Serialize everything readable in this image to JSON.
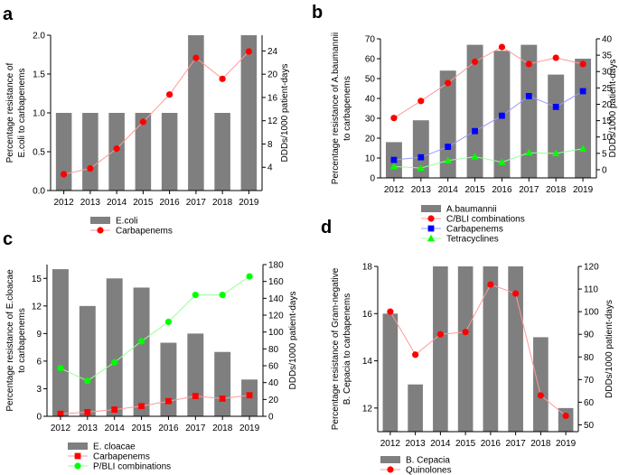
{
  "colors": {
    "bar": "#7f7f7f",
    "red": "#ff0000",
    "blue": "#0000ff",
    "green": "#00ff00",
    "light_red": "#ff9999",
    "light_blue": "#9999ff",
    "light_green": "#99ff99"
  },
  "chart_data": [
    {
      "panel": "a",
      "type": "bar+line",
      "categories": [
        "2012",
        "2013",
        "2014",
        "2015",
        "2016",
        "2017",
        "2018",
        "2019"
      ],
      "ylabel": "Percentage resistance of E.coli to carbapenems",
      "ylabel_lines": [
        "Percentage resistance of",
        "E.coli to carbapenems"
      ],
      "y2label": "DDDs/1000 patient-days",
      "ylim": [
        0,
        2.0
      ],
      "yticks": [
        "0.0",
        "0.5",
        "1.0",
        "1.5",
        "2.0"
      ],
      "y2lim": [
        0,
        26.7
      ],
      "y2ticks": [
        "4",
        "8",
        "12",
        "16",
        "20",
        "24"
      ],
      "bars": {
        "name": "E.coli",
        "values": [
          1,
          1,
          1,
          1,
          1,
          2,
          1,
          2
        ]
      },
      "lines": [
        {
          "name": "Carbapenems",
          "color_key": "red",
          "marker": "circle",
          "values": [
            2.8,
            3.8,
            7.2,
            11.8,
            16.5,
            22.8,
            19.2,
            23.9
          ]
        }
      ]
    },
    {
      "panel": "b",
      "type": "bar+line",
      "categories": [
        "2012",
        "2013",
        "2014",
        "2015",
        "2016",
        "2017",
        "2018",
        "2019"
      ],
      "ylabel": "Percentage resistance of A.baumannii to carbapenems",
      "ylabel_lines": [
        "Percentage resistance of A.baumannii",
        "to carbapenems"
      ],
      "y2label": "DDDs/1000 patient-days",
      "ylim": [
        0,
        70
      ],
      "yticks": [
        "0",
        "10",
        "20",
        "30",
        "40",
        "50",
        "60",
        "70"
      ],
      "y2lim": [
        -2.5,
        40
      ],
      "y2ticks": [
        "0",
        "5",
        "10",
        "15",
        "20",
        "25",
        "30",
        "35",
        "40"
      ],
      "bars": {
        "name": "A.baumannii",
        "values": [
          18,
          29,
          54,
          67,
          64,
          67,
          52,
          60
        ]
      },
      "lines": [
        {
          "name": "C/BLI combinations",
          "color_key": "red",
          "marker": "circle",
          "values": [
            15.8,
            21.0,
            26.5,
            33.0,
            37.5,
            32.3,
            34.2,
            32.3
          ]
        },
        {
          "name": "Carbapenems",
          "color_key": "blue",
          "marker": "square",
          "values": [
            3.0,
            3.8,
            7.0,
            11.8,
            16.5,
            22.5,
            19.2,
            24.0
          ]
        },
        {
          "name": "Tetracyclines",
          "color_key": "green",
          "marker": "triangle",
          "values": [
            1.0,
            0.5,
            2.8,
            4.0,
            2.3,
            5.2,
            5.0,
            6.4
          ]
        }
      ]
    },
    {
      "panel": "c",
      "type": "bar+line",
      "categories": [
        "2012",
        "2013",
        "2014",
        "2015",
        "2016",
        "2017",
        "2018",
        "2019"
      ],
      "ylabel": "Percentage resistance of E.cloacae to carbapenems",
      "ylabel_lines": [
        "Percentage resistance of E.cloacae",
        "to carbapenems"
      ],
      "y2label": "DDDs/1000 patient-days",
      "ylim": [
        0,
        16.5
      ],
      "yticks": [
        "0",
        "3",
        "6",
        "9",
        "12",
        "15"
      ],
      "y2lim": [
        0,
        180
      ],
      "y2ticks": [
        "0",
        "20",
        "40",
        "60",
        "80",
        "100",
        "120",
        "140",
        "160",
        "180"
      ],
      "bars": {
        "name": "E. cloacae",
        "values": [
          16,
          12,
          15,
          14,
          8,
          9,
          7,
          4
        ]
      },
      "lines": [
        {
          "name": "Carbapenems",
          "color_key": "red",
          "marker": "square",
          "values": [
            3,
            5,
            8,
            12,
            18,
            24,
            21,
            25
          ]
        },
        {
          "name": "P/BLI combinations",
          "color_key": "green",
          "marker": "circle",
          "values": [
            57,
            42,
            64,
            89,
            112,
            144,
            144,
            166
          ]
        }
      ]
    },
    {
      "panel": "d",
      "type": "bar+line",
      "categories": [
        "2012",
        "2013",
        "2014",
        "2015",
        "2016",
        "2017",
        "2018",
        "2019"
      ],
      "ylabel": "Percentage resistance of Gram-negative B. Cepacia to carbapenems",
      "ylabel_lines": [
        "Percentage resistance of Gram-negative",
        "B. Cepacia to carbapenems"
      ],
      "y2label": "DDDs/1000 patient-days",
      "ylim": [
        11,
        18
      ],
      "yticks": [
        "12",
        "14",
        "16",
        "18"
      ],
      "y2lim": [
        47,
        120
      ],
      "y2ticks": [
        "50",
        "60",
        "70",
        "80",
        "90",
        "100",
        "110",
        "120"
      ],
      "bars": {
        "name": "B. Cepacia",
        "values": [
          16,
          13,
          18,
          18,
          18,
          18,
          15,
          12
        ]
      },
      "lines": [
        {
          "name": "Quinolones",
          "color_key": "red",
          "marker": "circle",
          "values": [
            100,
            81,
            90,
            91,
            112,
            108,
            63,
            54
          ]
        }
      ]
    }
  ]
}
